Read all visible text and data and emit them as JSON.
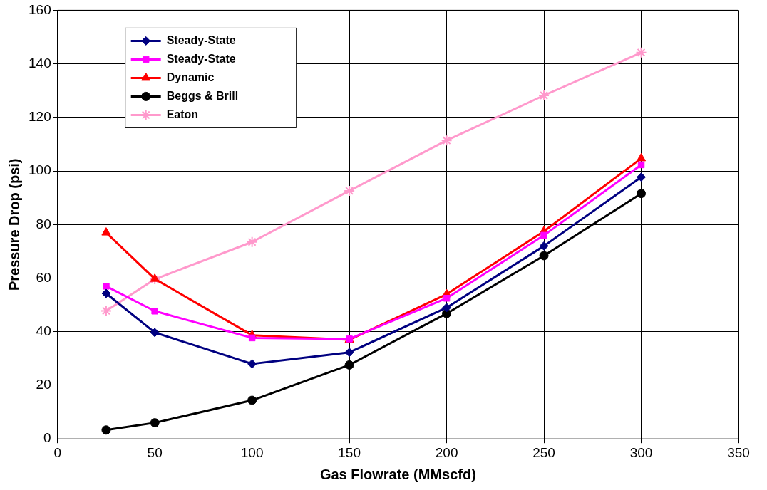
{
  "chart_data": {
    "type": "line",
    "xlabel": "Gas Flowrate (MMscfd)",
    "ylabel": "Pressure Drop (psi)",
    "x": [
      25,
      50,
      100,
      150,
      200,
      250,
      300
    ],
    "xlim": [
      0,
      350
    ],
    "xticks": [
      0,
      50,
      100,
      150,
      200,
      250,
      300,
      350
    ],
    "ylim": [
      0,
      160
    ],
    "yticks": [
      0,
      20,
      40,
      60,
      80,
      100,
      120,
      140,
      160
    ],
    "grid": true,
    "legend": "top left",
    "line_style": "solid",
    "series": [
      {
        "name": "Steady-State",
        "color": "#000080",
        "marker": "diamond",
        "values": [
          54.3,
          39.7,
          28,
          32.3,
          49,
          72,
          97.7
        ]
      },
      {
        "name": "Steady-State",
        "color": "#ff00ff",
        "marker": "square",
        "values": [
          57,
          47.7,
          37.7,
          37.3,
          52.5,
          76,
          102.3
        ]
      },
      {
        "name": "Dynamic",
        "color": "#ff0000",
        "marker": "triangle",
        "values": [
          77,
          59.7,
          38.7,
          37,
          54,
          77.5,
          104.7
        ]
      },
      {
        "name": "Beggs & Brill",
        "color": "#000000",
        "marker": "circle",
        "values": [
          3.3,
          6,
          14.4,
          27.6,
          46.8,
          68.4,
          91.6
        ]
      },
      {
        "name": "Eaton",
        "color": "#ff99cc",
        "marker": "cross",
        "values": [
          47.8,
          59.6,
          73.5,
          92.6,
          111.4,
          128.2,
          144.2
        ]
      }
    ]
  }
}
